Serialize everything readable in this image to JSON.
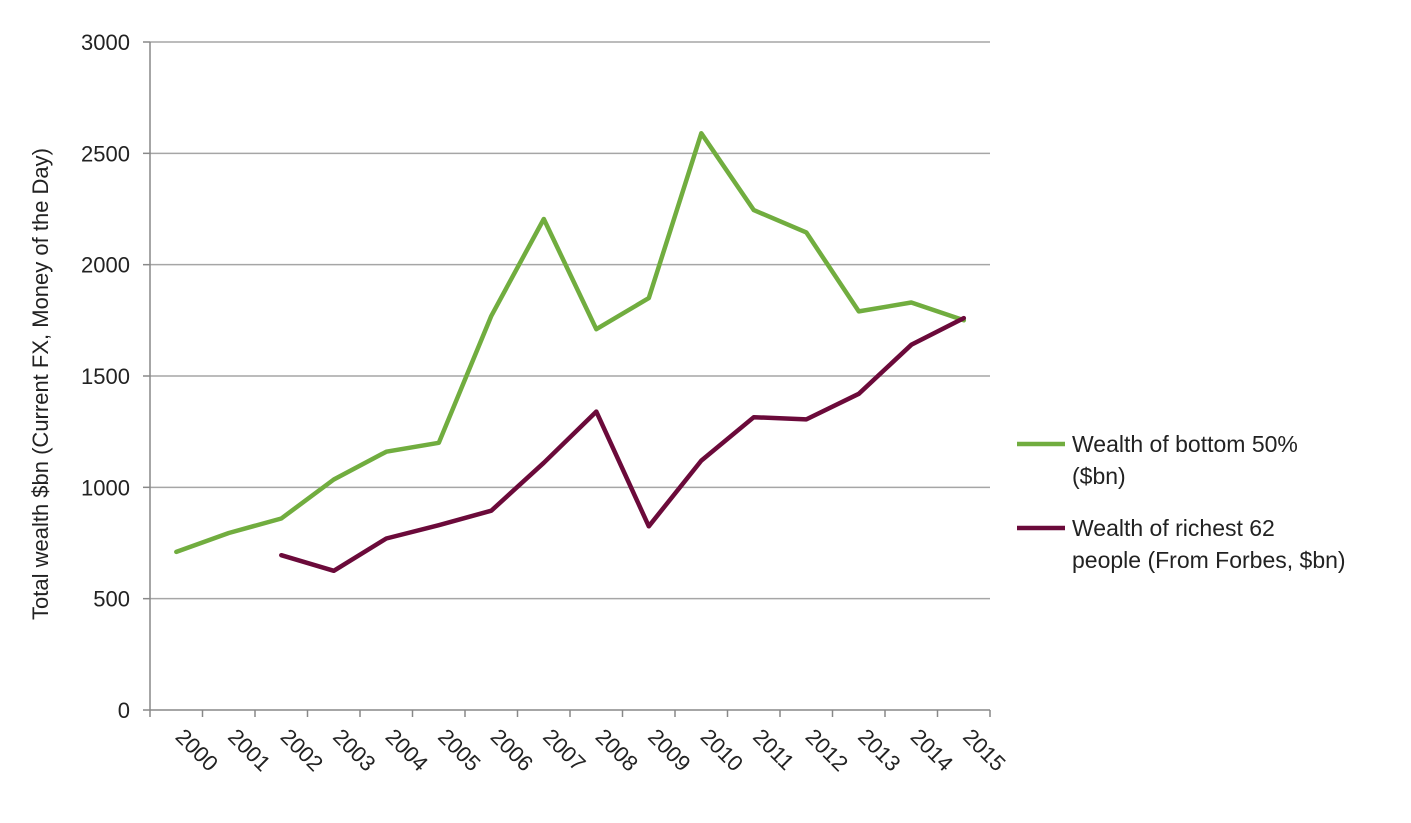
{
  "chart_data": {
    "type": "line",
    "title": "",
    "xlabel": "",
    "ylabel": "Total wealth $bn (Current FX, Money of the Day)",
    "ylim": [
      0,
      3000
    ],
    "yticks": [
      0,
      500,
      1000,
      1500,
      2000,
      2500,
      3000
    ],
    "grid": true,
    "legend_position": "right",
    "categories": [
      "2000",
      "2001",
      "2002",
      "2003",
      "2004",
      "2005",
      "2006",
      "2007",
      "2008",
      "2009",
      "2010",
      "2011",
      "2012",
      "2013",
      "2014",
      "2015"
    ],
    "series": [
      {
        "name_lines": [
          "Wealth of bottom 50%",
          "($bn)"
        ],
        "color": "#71ad3f",
        "values": [
          710,
          795,
          860,
          1035,
          1160,
          1200,
          1770,
          2205,
          1710,
          1850,
          2590,
          2245,
          2145,
          1790,
          1830,
          1750
        ]
      },
      {
        "name_lines": [
          "Wealth of richest 62",
          "people (From Forbes, $bn)"
        ],
        "color": "#6b0a3a",
        "values": [
          null,
          null,
          695,
          625,
          770,
          830,
          895,
          1110,
          1340,
          825,
          1120,
          1315,
          1305,
          1420,
          1640,
          1760
        ]
      }
    ]
  }
}
